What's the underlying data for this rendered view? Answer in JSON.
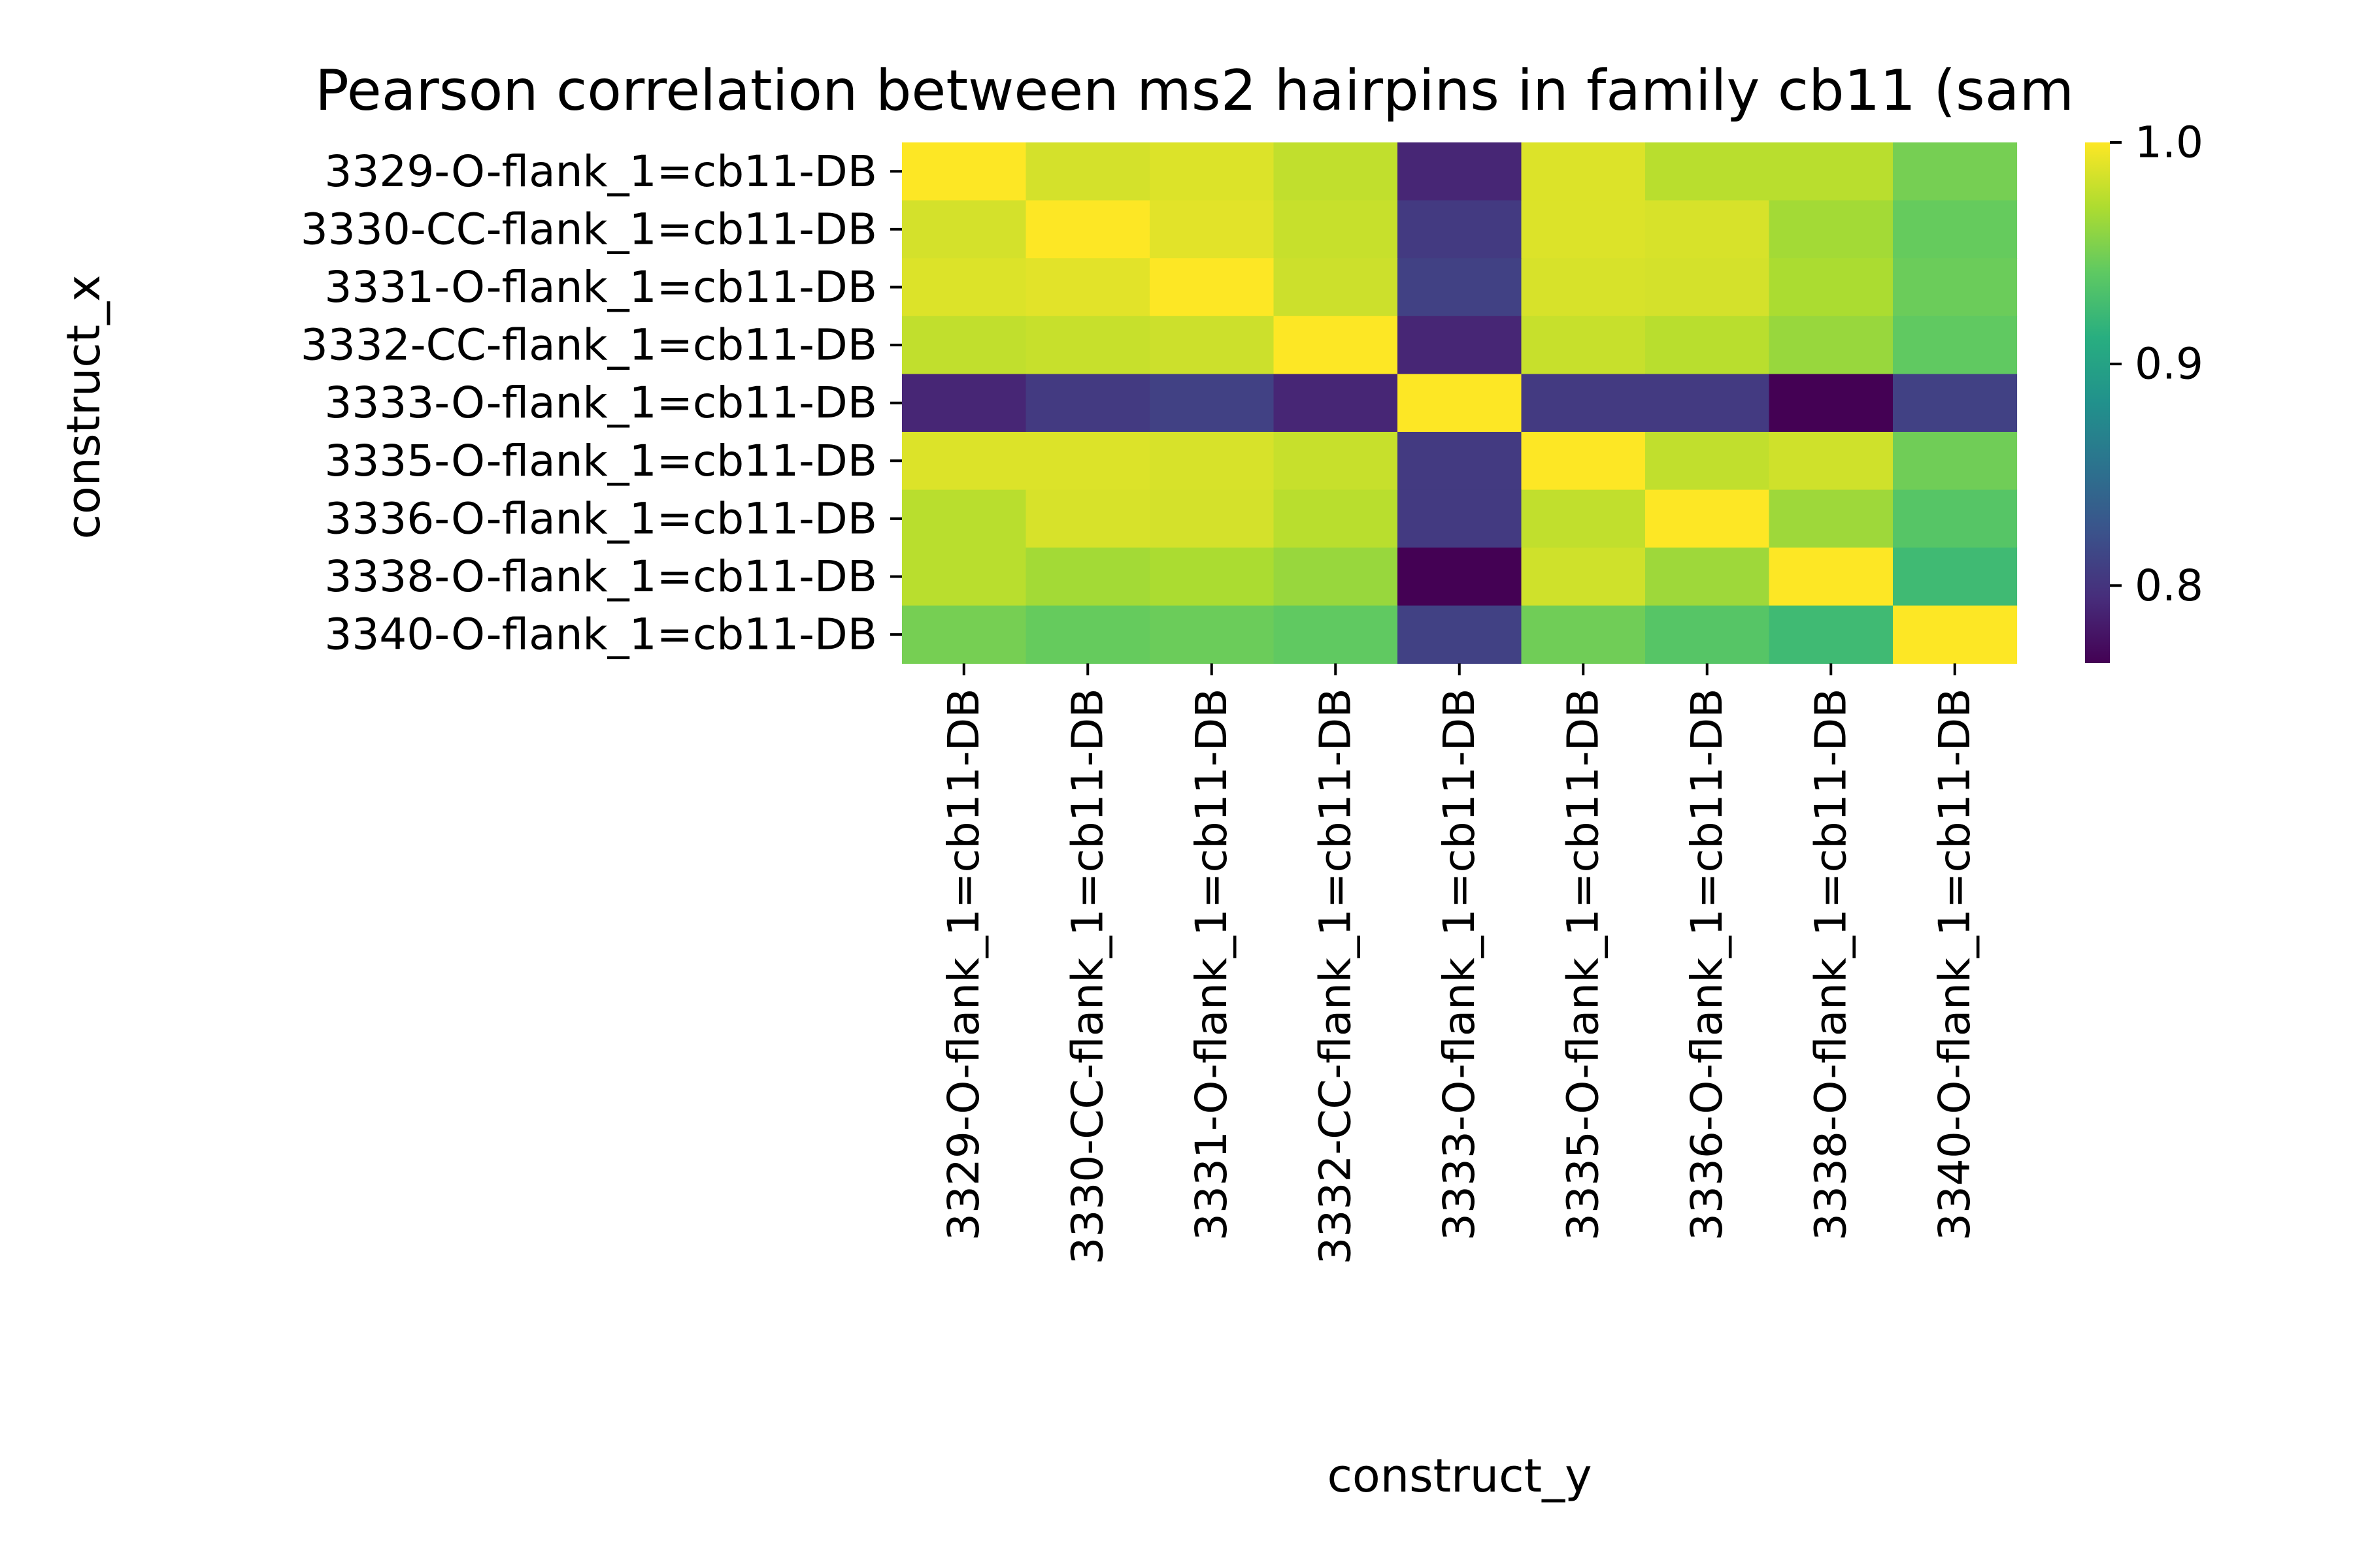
{
  "chart_data": {
    "type": "heatmap",
    "title": "Pearson correlation between ms2 hairpins in family cb11 (sam",
    "xlabel": "construct_y",
    "ylabel": "construct_x",
    "x_categories": [
      "3329-O-flank_1=cb11-DB",
      "3330-CC-flank_1=cb11-DB",
      "3331-O-flank_1=cb11-DB",
      "3332-CC-flank_1=cb11-DB",
      "3333-O-flank_1=cb11-DB",
      "3335-O-flank_1=cb11-DB",
      "3336-O-flank_1=cb11-DB",
      "3338-O-flank_1=cb11-DB",
      "3340-O-flank_1=cb11-DB"
    ],
    "y_categories": [
      "3329-O-flank_1=cb11-DB",
      "3330-CC-flank_1=cb11-DB",
      "3331-O-flank_1=cb11-DB",
      "3332-CC-flank_1=cb11-DB",
      "3333-O-flank_1=cb11-DB",
      "3335-O-flank_1=cb11-DB",
      "3336-O-flank_1=cb11-DB",
      "3338-O-flank_1=cb11-DB",
      "3340-O-flank_1=cb11-DB"
    ],
    "values": [
      [
        1.0,
        0.985,
        0.988,
        0.978,
        0.79,
        0.988,
        0.975,
        0.975,
        0.95
      ],
      [
        0.985,
        1.0,
        0.99,
        0.98,
        0.805,
        0.988,
        0.986,
        0.967,
        0.944
      ],
      [
        0.988,
        0.99,
        1.0,
        0.982,
        0.81,
        0.986,
        0.985,
        0.97,
        0.946
      ],
      [
        0.978,
        0.98,
        0.982,
        1.0,
        0.79,
        0.98,
        0.975,
        0.963,
        0.942
      ],
      [
        0.79,
        0.805,
        0.81,
        0.79,
        1.0,
        0.805,
        0.805,
        0.765,
        0.81
      ],
      [
        0.988,
        0.988,
        0.986,
        0.98,
        0.805,
        1.0,
        0.978,
        0.983,
        0.948
      ],
      [
        0.975,
        0.986,
        0.985,
        0.975,
        0.805,
        0.978,
        1.0,
        0.965,
        0.937
      ],
      [
        0.975,
        0.967,
        0.97,
        0.963,
        0.765,
        0.983,
        0.965,
        1.0,
        0.925
      ],
      [
        0.95,
        0.944,
        0.946,
        0.942,
        0.81,
        0.948,
        0.937,
        0.925,
        1.0
      ]
    ],
    "colormap": "viridis",
    "colorbar": {
      "vmin": 0.765,
      "vmax": 1.0,
      "ticks": [
        0.8,
        0.9,
        1.0
      ],
      "tick_labels": [
        "0.8",
        "0.9",
        "1.0"
      ]
    },
    "grid": false,
    "legend": "none"
  }
}
